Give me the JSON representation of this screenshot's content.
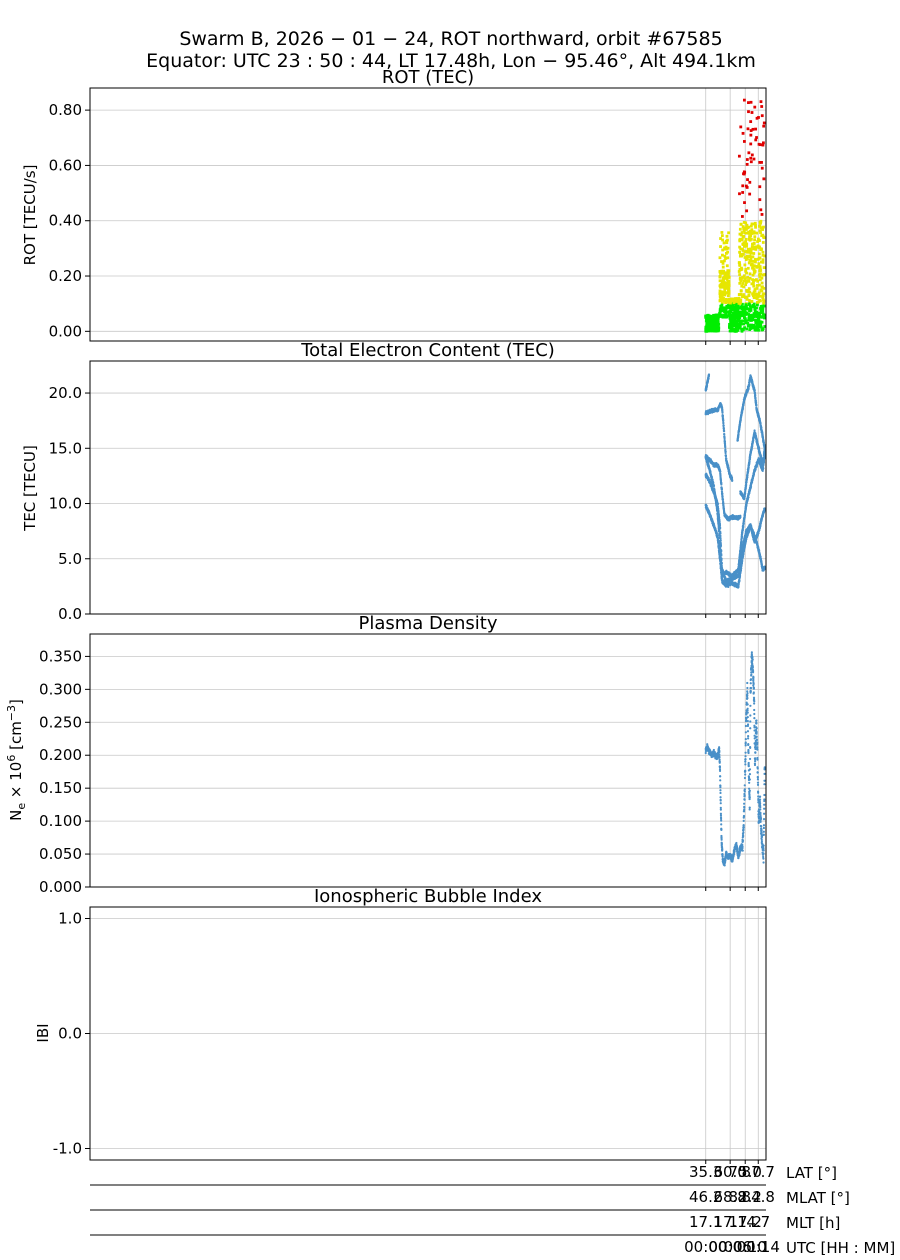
{
  "title_line1": "Swarm B,  2026 − 01 − 24,  ROT northward,  orbit #67585",
  "title_line2": "Equator:  UTC 23 : 50 : 44,  LT 17.48h,  Lon  − 95.46°,  Alt 494.1km",
  "chart_data": [
    {
      "type": "scatter",
      "title": "ROT (TEC)",
      "ylabel": "ROT [TECU/s]",
      "ylim": [
        -0.035,
        0.88
      ],
      "yticks": [
        0.0,
        0.2,
        0.4,
        0.6,
        0.8
      ],
      "ytick_labels": [
        "0.00",
        "0.20",
        "0.40",
        "0.60",
        "0.80"
      ],
      "xlim_min": [
        -151.2,
        14.8
      ],
      "grid": true,
      "colors": {
        "low": "#00ee00",
        "mid": "#e6e600",
        "high": "#e00000"
      },
      "thresholds": [
        0.1,
        0.4
      ],
      "segments": [
        {
          "x_min": [
            0.0,
            3.2
          ],
          "y_range": [
            0.0,
            0.06
          ]
        },
        {
          "x_min": [
            3.4,
            5.8
          ],
          "y_range": [
            0.05,
            0.37
          ]
        },
        {
          "x_min": [
            5.8,
            8.2
          ],
          "y_range": [
            0.0,
            0.12
          ]
        },
        {
          "x_min": [
            8.2,
            14.5
          ],
          "y_range": [
            0.0,
            0.84
          ]
        }
      ]
    },
    {
      "type": "scatter",
      "title": "Total Electron Content (TEC)",
      "ylabel": "TEC [TECU]",
      "ylim": [
        0.0,
        22.9
      ],
      "yticks": [
        0.0,
        5.0,
        10.0,
        15.0,
        20.0
      ],
      "ytick_labels": [
        "0.0",
        "5.0",
        "10.0",
        "15.0",
        "20.0"
      ],
      "grid": true,
      "color": "#4a90c8",
      "tracks": [
        {
          "x": [
            0.0,
            0.8
          ],
          "y": [
            20.3,
            21.6
          ]
        },
        {
          "x": [
            0.0,
            1.5,
            3.0,
            3.6,
            4.0,
            4.5,
            5.0,
            6.0,
            6.5
          ],
          "y": [
            18.2,
            18.4,
            18.5,
            19.0,
            18.7,
            16.5,
            14.0,
            12.5,
            12.2
          ]
        },
        {
          "x": [
            0.0,
            1.0,
            2.0,
            2.9,
            3.5,
            4.0,
            4.6,
            5.5,
            6.5,
            8.0,
            8.5
          ],
          "y": [
            14.3,
            13.9,
            13.5,
            13.5,
            13.0,
            11.0,
            9.0,
            8.6,
            8.8,
            8.7,
            8.8
          ]
        },
        {
          "x": [
            0.0,
            1.0,
            2.0,
            2.8,
            3.4,
            4.0,
            5.0,
            6.5,
            8.0,
            9.0,
            10.0,
            11.0,
            12.0,
            13.0,
            14.0,
            14.5
          ],
          "y": [
            14.2,
            13.0,
            11.5,
            9.5,
            7.0,
            3.5,
            3.8,
            3.4,
            4.0,
            7.5,
            10.0,
            11.5,
            13.0,
            14.0,
            13.0,
            14.5
          ]
        },
        {
          "x": [
            0.0,
            1.0,
            2.0,
            2.9,
            3.5,
            4.0,
            5.0,
            6.5,
            8.0,
            9.0,
            10.0,
            11.0,
            12.0,
            13.0,
            14.0,
            14.5
          ],
          "y": [
            12.6,
            12.0,
            11.0,
            10.0,
            8.0,
            4.0,
            3.0,
            3.2,
            3.5,
            6.0,
            7.5,
            8.0,
            6.5,
            7.5,
            9.0,
            9.5
          ]
        },
        {
          "x": [
            0.0,
            1.0,
            2.0,
            2.9,
            3.5,
            4.0,
            5.0,
            6.5,
            8.0,
            9.0,
            10.0,
            11.0,
            12.5,
            13.5,
            14.0,
            14.5
          ],
          "y": [
            9.8,
            9.0,
            8.0,
            7.0,
            5.0,
            3.0,
            2.6,
            2.8,
            2.5,
            5.0,
            7.0,
            8.0,
            6.5,
            5.0,
            4.0,
            4.2
          ]
        },
        {
          "x": [
            7.8,
            8.5,
            9.5,
            10.5,
            11.0,
            12.0,
            12.5,
            13.3,
            14.0,
            14.5
          ],
          "y": [
            15.7,
            17.5,
            19.5,
            20.5,
            21.5,
            20.2,
            18.5,
            17.5,
            16.0,
            15.0
          ]
        },
        {
          "x": [
            8.5,
            9.5,
            10.0,
            11.0,
            12.0,
            13.0,
            14.0,
            14.5
          ],
          "y": [
            11.0,
            10.5,
            12.0,
            14.5,
            16.5,
            15.0,
            13.5,
            15.0
          ]
        }
      ]
    },
    {
      "type": "scatter",
      "title": "Plasma Density",
      "ylabel": "N_e × 10^6 [cm^-3]",
      "ylim": [
        0.0,
        0.384
      ],
      "yticks": [
        0.0,
        0.05,
        0.1,
        0.15,
        0.2,
        0.25,
        0.3,
        0.35
      ],
      "ytick_labels": [
        "0.000",
        "0.050",
        "0.100",
        "0.150",
        "0.200",
        "0.250",
        "0.300",
        "0.350"
      ],
      "grid": true,
      "color": "#4a90c8",
      "trace": {
        "x": [
          0.0,
          0.4,
          1.0,
          1.5,
          2.0,
          2.5,
          3.0,
          3.3,
          3.5,
          3.7,
          3.9,
          4.2,
          4.6,
          5.0,
          5.5,
          6.0,
          6.5,
          7.0,
          7.5,
          8.0,
          8.5,
          9.0,
          9.3,
          9.6,
          9.9,
          10.2,
          10.5,
          10.8,
          11.0,
          11.3,
          11.6,
          11.9,
          12.1,
          12.4,
          12.7,
          13.0,
          13.3,
          13.6,
          13.9,
          14.2,
          14.5
        ],
        "y": [
          0.207,
          0.212,
          0.205,
          0.2,
          0.203,
          0.198,
          0.2,
          0.21,
          0.18,
          0.12,
          0.07,
          0.04,
          0.035,
          0.05,
          0.045,
          0.048,
          0.04,
          0.055,
          0.065,
          0.045,
          0.06,
          0.06,
          0.09,
          0.15,
          0.25,
          0.3,
          0.2,
          0.12,
          0.3,
          0.35,
          0.33,
          0.28,
          0.19,
          0.25,
          0.2,
          0.1,
          0.13,
          0.09,
          0.06,
          0.05,
          0.19
        ]
      }
    },
    {
      "type": "scatter",
      "title": "Ionospheric Bubble Index",
      "ylabel": "IBI",
      "ylim": [
        -1.1,
        1.1
      ],
      "yticks": [
        1.0,
        0.0,
        -1.0
      ],
      "ytick_labels": [
        "1.0",
        "0.0",
        "-1.0"
      ],
      "grid": true,
      "points": []
    }
  ],
  "x_axis_table": {
    "ticks_min": [
      0.0,
      6.0,
      9.7,
      12.9
    ],
    "rows": [
      {
        "name": "LAT [°]",
        "values": [
          "35.3",
          "60.0",
          "75.0",
          "87.7"
        ]
      },
      {
        "name": "MLAT [°]",
        "values": [
          "46.2",
          "68.8",
          "82.2",
          "84.8"
        ]
      },
      {
        "name": "MLT [h]",
        "values": [
          "17.1",
          "17.1",
          "17.2",
          "4.7"
        ]
      },
      {
        "name": "UTC [HH : MM]",
        "values": [
          "00:00",
          "00:06",
          "00:10",
          "00:14"
        ]
      }
    ]
  }
}
